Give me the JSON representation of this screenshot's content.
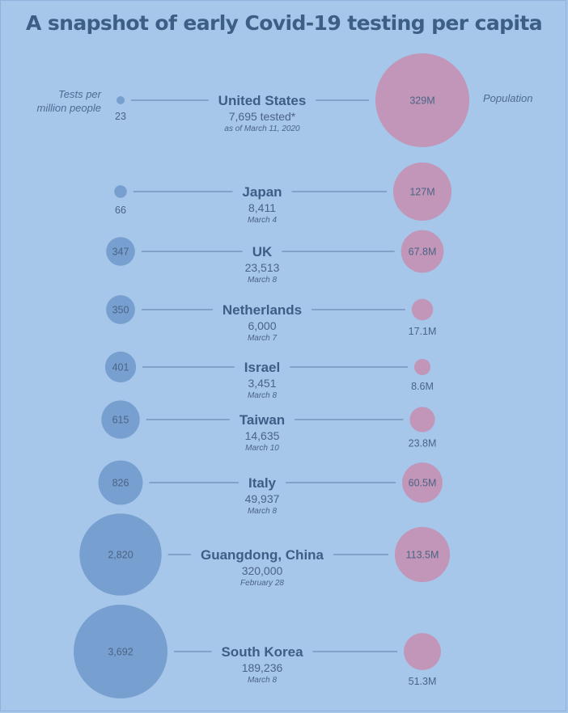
{
  "chart_data": {
    "type": "bubble",
    "title": "A snapshot of early Covid-19 testing per capita",
    "left_label_line1": "Tests per",
    "left_label_line2": "million people",
    "right_label": "Population",
    "colors": {
      "tests": "#779fcf",
      "population": "#c196b8",
      "line": "#5f7da4",
      "background": "#a6c6ea"
    },
    "rows": [
      {
        "name": "United States",
        "tests_per_million": 23,
        "tests_label": "23",
        "tested": "7,695 tested*",
        "date": "as of March 11, 2020",
        "population_m": 329,
        "population_label": "329M"
      },
      {
        "name": "Japan",
        "tests_per_million": 66,
        "tests_label": "66",
        "tested": "8,411",
        "date": "March 4",
        "population_m": 127,
        "population_label": "127M"
      },
      {
        "name": "UK",
        "tests_per_million": 347,
        "tests_label": "347",
        "tested": "23,513",
        "date": "March 8",
        "population_m": 67.8,
        "population_label": "67.8M"
      },
      {
        "name": "Netherlands",
        "tests_per_million": 350,
        "tests_label": "350",
        "tested": "6,000",
        "date": "March 7",
        "population_m": 17.1,
        "population_label": "17.1M"
      },
      {
        "name": "Israel",
        "tests_per_million": 401,
        "tests_label": "401",
        "tested": "3,451",
        "date": "March 8",
        "population_m": 8.6,
        "population_label": "8.6M"
      },
      {
        "name": "Taiwan",
        "tests_per_million": 615,
        "tests_label": "615",
        "tested": "14,635",
        "date": "March 10",
        "population_m": 23.8,
        "population_label": "23.8M"
      },
      {
        "name": "Italy",
        "tests_per_million": 826,
        "tests_label": "826",
        "tested": "49,937",
        "date": "March 8",
        "population_m": 60.5,
        "population_label": "60.5M"
      },
      {
        "name": "Guangdong, China",
        "tests_per_million": 2820,
        "tests_label": "2,820",
        "tested": "320,000",
        "date": "February 28",
        "population_m": 113.5,
        "population_label": "113.5M"
      },
      {
        "name": "South Korea",
        "tests_per_million": 3692,
        "tests_label": "3,692",
        "tested": "189,236",
        "date": "March 8",
        "population_m": 51.3,
        "population_label": "51.3M"
      }
    ]
  }
}
